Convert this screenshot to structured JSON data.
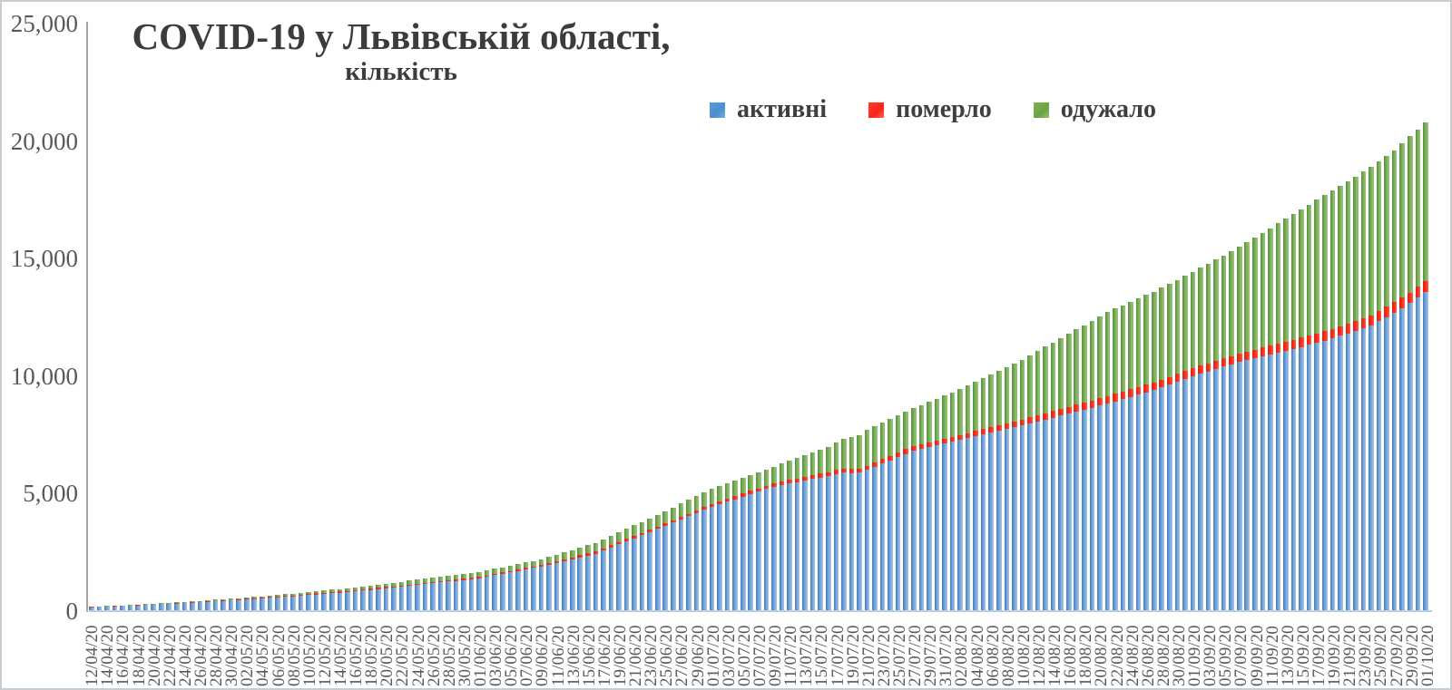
{
  "title": {
    "text": "COVID-19 у Львівській області,",
    "subtitle": "кількість"
  },
  "chart_data": {
    "type": "bar",
    "stacked": true,
    "title": "COVID-19 у Львівській області,",
    "subtitle": "кількість",
    "xlabel": "",
    "ylabel": "",
    "ylim": [
      0,
      25000
    ],
    "grid": false,
    "legend_position": "top",
    "y_tick_labels": [
      "25,000",
      "20,000",
      "15,000",
      "10,000",
      "5,000",
      "0"
    ],
    "x_tick_labels": [
      "12/04/20",
      "14/04/20",
      "16/04/20",
      "18/04/20",
      "20/04/20",
      "22/04/20",
      "24/04/20",
      "26/04/20",
      "28/04/20",
      "30/04/20",
      "02/05/20",
      "04/05/20",
      "06/05/20",
      "08/05/20",
      "10/05/20",
      "12/05/20",
      "14/05/20",
      "16/05/20",
      "18/05/20",
      "20/05/20",
      "22/05/20",
      "24/05/20",
      "26/05/20",
      "28/05/20",
      "30/05/20",
      "01/06/20",
      "03/06/20",
      "05/06/20",
      "07/06/20",
      "09/06/20",
      "11/06/20",
      "13/06/20",
      "15/06/20",
      "17/06/20",
      "19/06/20",
      "21/06/20",
      "23/06/20",
      "25/06/20",
      "27/06/20",
      "29/06/20",
      "01/07/20",
      "03/07/20",
      "05/07/20",
      "07/07/20",
      "09/07/20",
      "11/07/20",
      "13/07/20",
      "15/07/20",
      "17/07/20",
      "19/07/20",
      "21/07/20",
      "23/07/20",
      "25/07/20",
      "27/07/20",
      "29/07/20",
      "31/07/20",
      "02/08/20",
      "04/08/20",
      "06/08/20",
      "08/08/20",
      "10/08/20",
      "12/08/20",
      "14/08/20",
      "16/08/20",
      "18/08/20",
      "20/08/20",
      "22/08/20",
      "24/08/20",
      "26/08/20",
      "28/08/20",
      "30/08/20",
      "01/09/20",
      "03/09/20",
      "05/09/20",
      "07/09/20",
      "09/09/20",
      "11/09/20",
      "13/09/20",
      "15/09/20",
      "17/09/20",
      "19/09/20",
      "21/09/20",
      "23/09/20",
      "25/09/20",
      "27/09/20",
      "29/09/20",
      "01/10/20"
    ],
    "bars_per_tick": 2,
    "date_range": {
      "start": "12/04/20",
      "end": "01/10/20",
      "frequency": "daily",
      "n_points": 173
    },
    "series": [
      {
        "name": "активні",
        "color": "#4a8fd2",
        "values": [
          170,
          183,
          197,
          210,
          223,
          237,
          250,
          263,
          277,
          290,
          308,
          326,
          344,
          362,
          380,
          398,
          416,
          434,
          452,
          470,
          494,
          518,
          541,
          565,
          589,
          613,
          636,
          660,
          686,
          713,
          739,
          765,
          791,
          818,
          844,
          870,
          905,
          940,
          975,
          1010,
          1045,
          1080,
          1115,
          1150,
          1186,
          1221,
          1257,
          1293,
          1329,
          1364,
          1400,
          1463,
          1525,
          1588,
          1650,
          1713,
          1775,
          1838,
          1900,
          1979,
          2057,
          2136,
          2214,
          2293,
          2371,
          2450,
          2581,
          2713,
          2844,
          2975,
          3106,
          3238,
          3369,
          3500,
          3634,
          3769,
          3903,
          4037,
          4171,
          4306,
          4440,
          4548,
          4655,
          4763,
          4870,
          4978,
          5085,
          5193,
          5300,
          5364,
          5429,
          5493,
          5557,
          5621,
          5686,
          5750,
          5830,
          5900,
          5870,
          5890,
          6000,
          6138,
          6277,
          6415,
          6553,
          6692,
          6830,
          6904,
          6978,
          7052,
          7126,
          7200,
          7278,
          7356,
          7433,
          7511,
          7589,
          7667,
          7744,
          7822,
          7900,
          7983,
          8067,
          8150,
          8233,
          8317,
          8400,
          8487,
          8574,
          8661,
          8748,
          8835,
          8929,
          9023,
          9118,
          9212,
          9306,
          9400,
          9520,
          9640,
          9760,
          9880,
          10000,
          10100,
          10200,
          10300,
          10400,
          10500,
          10600,
          10679,
          10757,
          10836,
          10914,
          10993,
          11071,
          11150,
          11240,
          11330,
          11420,
          11510,
          11600,
          11710,
          11820,
          11930,
          12040,
          12150,
          12333,
          12517,
          12700,
          12900,
          13100,
          13340,
          13580
        ]
      },
      {
        "name": "померло",
        "color": "#fb2416",
        "values": [
          5,
          6,
          7,
          7,
          8,
          9,
          10,
          10,
          11,
          12,
          14,
          16,
          17,
          19,
          21,
          23,
          25,
          26,
          28,
          30,
          31,
          33,
          34,
          35,
          36,
          38,
          39,
          40,
          41,
          42,
          43,
          44,
          45,
          46,
          47,
          48,
          49,
          50,
          50,
          51,
          52,
          53,
          53,
          54,
          55,
          56,
          57,
          57,
          58,
          59,
          60,
          61,
          63,
          64,
          65,
          66,
          68,
          69,
          70,
          72,
          74,
          76,
          79,
          81,
          83,
          85,
          87,
          89,
          91,
          93,
          94,
          96,
          98,
          100,
          103,
          106,
          109,
          111,
          114,
          117,
          120,
          124,
          128,
          131,
          135,
          139,
          143,
          146,
          150,
          153,
          156,
          159,
          161,
          164,
          167,
          170,
          173,
          176,
          179,
          182,
          185,
          188,
          190,
          193,
          195,
          198,
          200,
          203,
          206,
          209,
          212,
          215,
          220,
          225,
          230,
          235,
          240,
          245,
          250,
          255,
          260,
          265,
          270,
          275,
          280,
          285,
          290,
          294,
          298,
          302,
          306,
          310,
          313,
          315,
          318,
          320,
          323,
          325,
          327,
          329,
          331,
          333,
          335,
          339,
          343,
          348,
          352,
          356,
          360,
          364,
          369,
          373,
          377,
          381,
          386,
          390,
          394,
          398,
          402,
          406,
          410,
          414,
          418,
          422,
          426,
          430,
          435,
          440,
          445,
          450,
          455,
          460,
          465
        ]
      },
      {
        "name": "одужало",
        "color": "#6aa343",
        "values": [
          15,
          16,
          18,
          19,
          21,
          22,
          24,
          25,
          27,
          28,
          30,
          32,
          35,
          37,
          39,
          41,
          43,
          46,
          48,
          50,
          54,
          58,
          61,
          65,
          69,
          73,
          76,
          80,
          85,
          91,
          96,
          101,
          106,
          112,
          117,
          122,
          129,
          136,
          142,
          149,
          156,
          163,
          169,
          176,
          179,
          183,
          186,
          190,
          193,
          197,
          200,
          204,
          208,
          211,
          215,
          219,
          223,
          226,
          230,
          249,
          269,
          288,
          307,
          326,
          346,
          365,
          382,
          399,
          416,
          433,
          449,
          466,
          483,
          500,
          521,
          543,
          564,
          586,
          607,
          629,
          650,
          656,
          663,
          669,
          675,
          681,
          688,
          694,
          700,
          754,
          809,
          863,
          917,
          971,
          1026,
          1080,
          1167,
          1254,
          1341,
          1428,
          1515,
          1531,
          1547,
          1562,
          1578,
          1594,
          1610,
          1665,
          1720,
          1775,
          1830,
          1885,
          1958,
          2031,
          2103,
          2176,
          2249,
          2322,
          2394,
          2467,
          2540,
          2635,
          2730,
          2825,
          2920,
          3015,
          3110,
          3205,
          3300,
          3395,
          3490,
          3585,
          3633,
          3682,
          3730,
          3778,
          3827,
          3875,
          3919,
          3963,
          4007,
          4051,
          4095,
          4169,
          4243,
          4318,
          4392,
          4466,
          4540,
          4657,
          4774,
          4891,
          5009,
          5126,
          5243,
          5360,
          5466,
          5572,
          5678,
          5784,
          5890,
          5976,
          6062,
          6148,
          6234,
          6320,
          6365,
          6410,
          6455,
          6550,
          6645,
          6695,
          6745
        ]
      }
    ]
  }
}
